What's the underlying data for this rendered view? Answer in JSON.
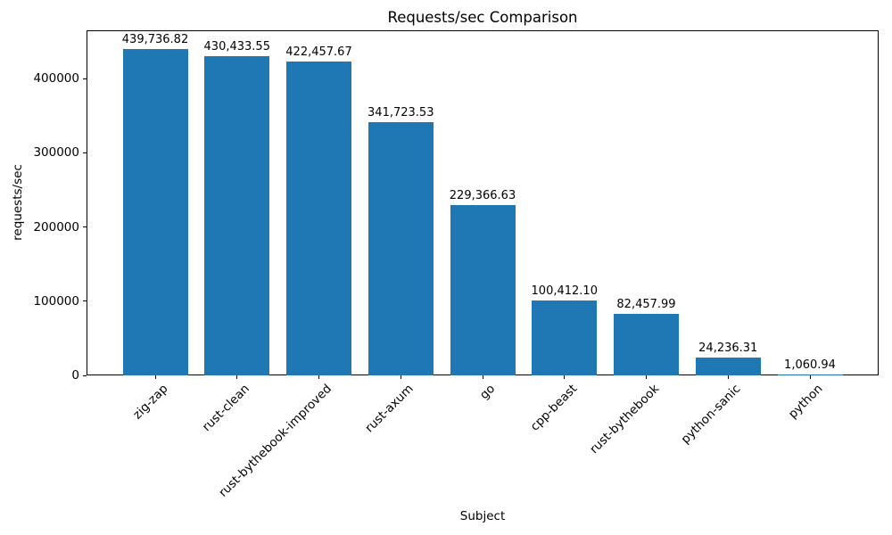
{
  "chart_data": {
    "type": "bar",
    "title": "Requests/sec Comparison",
    "xlabel": "Subject",
    "ylabel": "requests/sec",
    "categories": [
      "zig-zap",
      "rust-clean",
      "rust-bythebook-improved",
      "rust-axum",
      "go",
      "cpp-beast",
      "rust-bythebook",
      "python-sanic",
      "python"
    ],
    "values": [
      439736.82,
      430433.55,
      422457.67,
      341723.53,
      229366.63,
      100412.1,
      82457.99,
      24236.31,
      1060.94
    ],
    "value_labels": [
      "439,736.82",
      "430,433.55",
      "422,457.67",
      "341,723.53",
      "229,366.63",
      "100,412.10",
      "82,457.99",
      "24,236.31",
      "1,060.94"
    ],
    "y_ticks": [
      0,
      100000,
      200000,
      300000,
      400000
    ],
    "y_tick_labels": [
      "0",
      "100000",
      "200000",
      "300000",
      "400000"
    ],
    "ylim": [
      0,
      465000
    ],
    "bar_color": "#1f77b4",
    "text_color": "#000000",
    "background_color": "#ffffff",
    "grid": false,
    "legend": null,
    "x_tick_rotation_deg": 45
  }
}
